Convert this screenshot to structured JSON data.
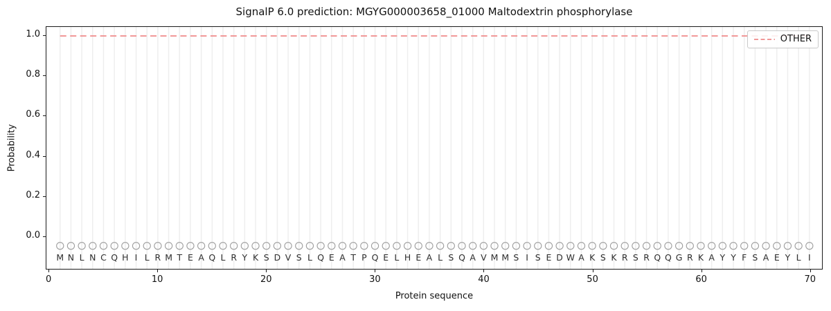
{
  "figure": {
    "title": "SignalP 6.0 prediction: MGYG000003658_01000 Maltodextrin phosphorylase",
    "xlabel": "Protein sequence",
    "ylabel": "Probability",
    "legend": {
      "label": "OTHER"
    }
  },
  "chart_data": {
    "type": "line",
    "title": "SignalP 6.0 prediction: MGYG000003658_01000 Maltodextrin phosphorylase",
    "xlabel": "Protein sequence",
    "ylabel": "Probability",
    "xlim": [
      -0.26,
      71.16
    ],
    "ylim": [
      -0.165,
      1.045
    ],
    "xticks": [
      "0",
      "10",
      "20",
      "30",
      "40",
      "50",
      "60",
      "70"
    ],
    "yticks": [
      "0.0",
      "0.2",
      "0.4",
      "0.6",
      "0.8",
      "1.0"
    ],
    "grid": "vertical gridline at every residue position",
    "legend_position": "upper right",
    "sequence": "MNLNCQHILRMTEAQLRYKSDVSLQEATPQELHEALSQAVMMSISEDWAKSKRSRQQGRKAYYFSAEYLI",
    "sequence_length": 70,
    "series": [
      {
        "name": "OTHER",
        "linestyle": "dashed",
        "color": "#ef8a8a",
        "x_from": 1,
        "x_to": 70,
        "y_constant": 1.0
      }
    ],
    "residue_markers": {
      "shape": "open-circle",
      "color": "#9e9e9e",
      "y_value": -0.05
    },
    "residue_letters_y": -0.108,
    "colors": {
      "grid": "#eeeeee",
      "letters": "#2e2e2e",
      "spine": "#1a1a1a"
    }
  }
}
